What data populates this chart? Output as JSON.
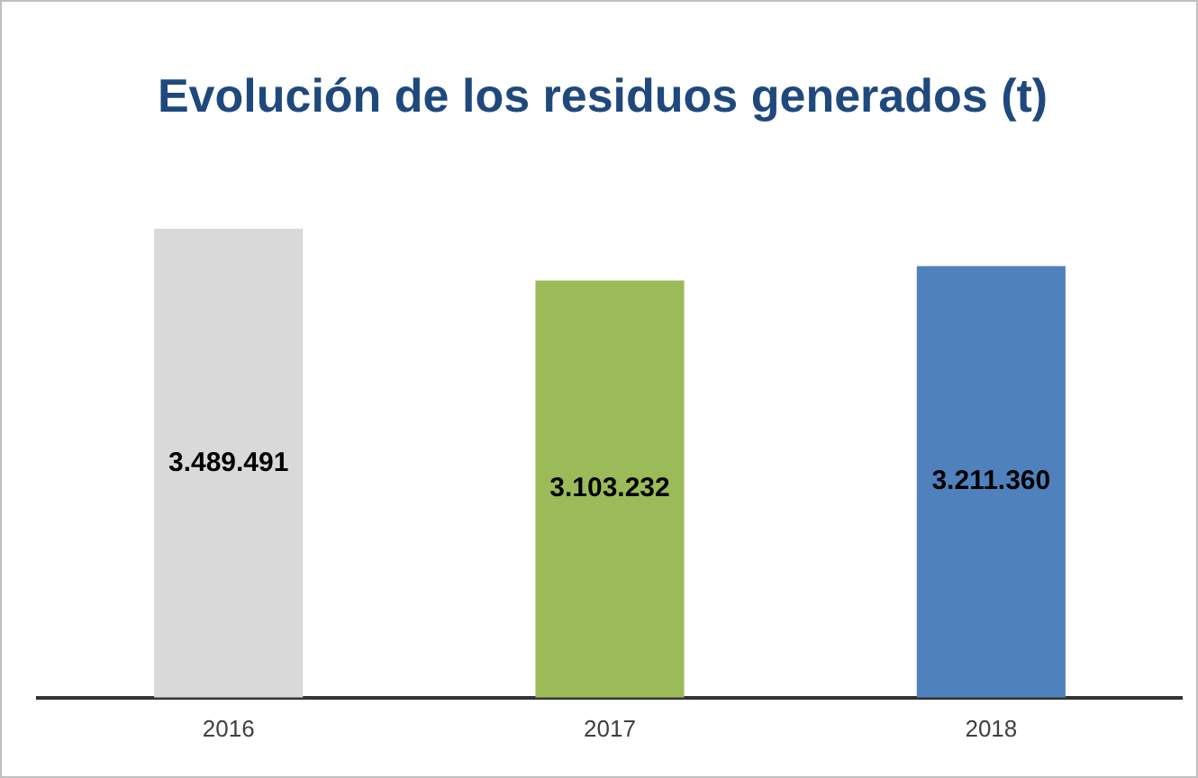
{
  "chart_data": {
    "type": "bar",
    "title": "Evolución de los residuos generados (t)",
    "categories": [
      "2016",
      "2017",
      "2018"
    ],
    "values": [
      3489491,
      3103232,
      3211360
    ],
    "colors": [
      "#d9d9d9",
      "#9bbb59",
      "#4f81bd"
    ],
    "value_labels": [
      "3.489.491",
      "3.103.232",
      "3.211.360"
    ],
    "tick_labels": "x",
    "grid": false,
    "legend": false
  }
}
